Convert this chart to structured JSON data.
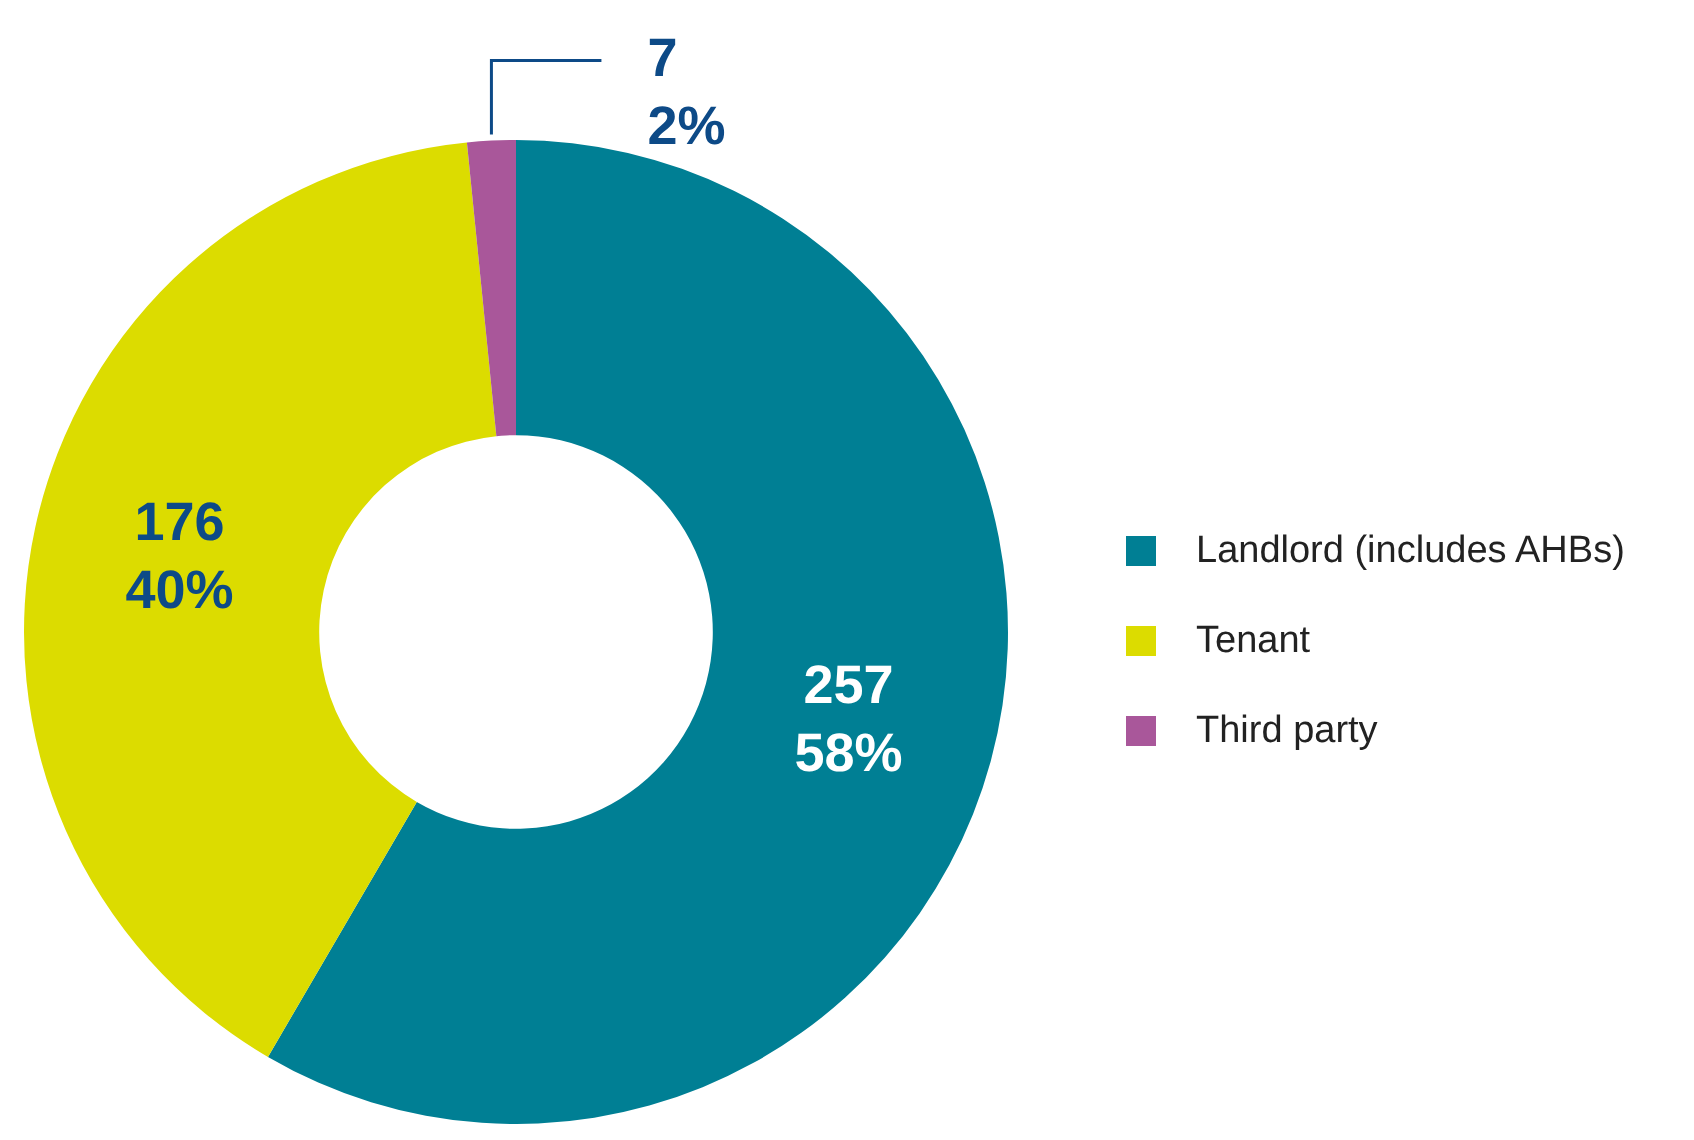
{
  "chart_data": {
    "type": "donut",
    "categories": [
      "Landlord (includes AHBs)",
      "Tenant",
      "Third party"
    ],
    "values": [
      257,
      176,
      7
    ],
    "colors": [
      "#007f94",
      "#dcdc00",
      "#a9579a"
    ],
    "value_labels": [
      "257\n58%",
      "176\n40%",
      "7\n2%"
    ],
    "legend": "right"
  }
}
